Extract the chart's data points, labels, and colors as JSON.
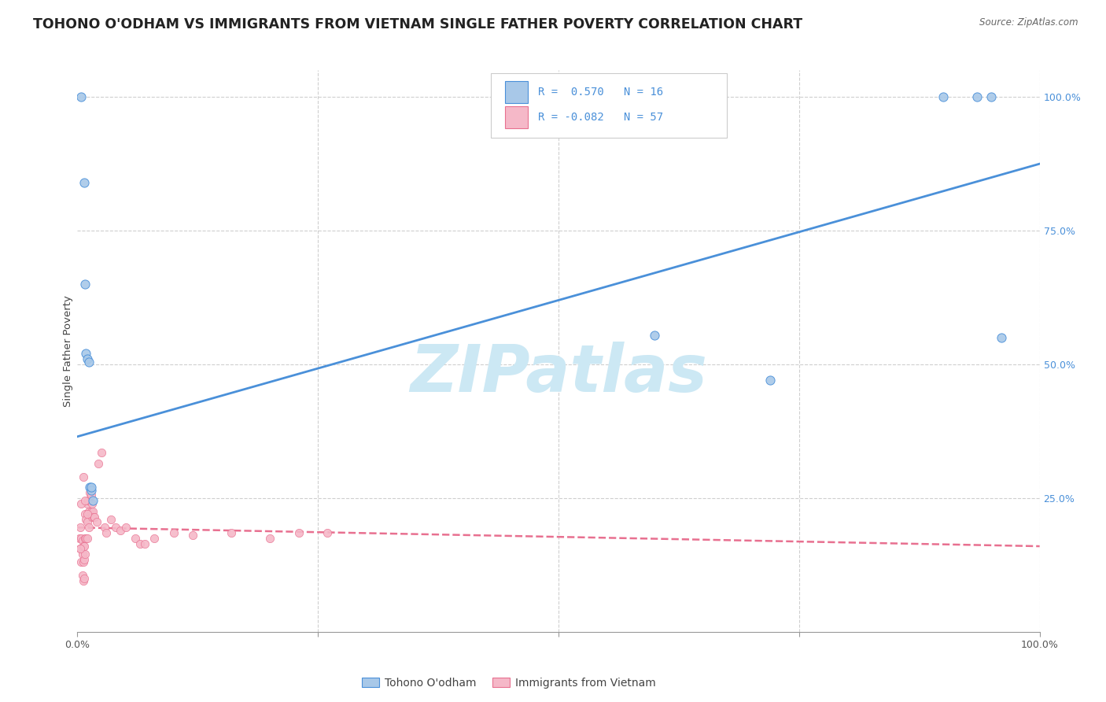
{
  "title": "TOHONO O'ODHAM VS IMMIGRANTS FROM VIETNAM SINGLE FATHER POVERTY CORRELATION CHART",
  "source": "Source: ZipAtlas.com",
  "ylabel": "Single Father Poverty",
  "right_yticks": [
    "100.0%",
    "75.0%",
    "50.0%",
    "25.0%"
  ],
  "right_ytick_vals": [
    1.0,
    0.75,
    0.5,
    0.25
  ],
  "legend_label1": "Tohono O'odham",
  "legend_label2": "Immigrants from Vietnam",
  "R1": 0.57,
  "N1": 16,
  "R2": -0.082,
  "N2": 57,
  "color_blue": "#a8c8e8",
  "color_pink": "#f5b8c8",
  "line_blue": "#4a90d9",
  "line_pink": "#e87090",
  "watermark": "ZIPatlas",
  "blue_points_x": [
    0.004,
    0.007,
    0.008,
    0.009,
    0.01,
    0.012,
    0.013,
    0.014,
    0.014,
    0.016,
    0.6,
    0.72,
    0.9,
    0.935,
    0.95,
    0.96
  ],
  "blue_points_y": [
    1.0,
    0.84,
    0.65,
    0.52,
    0.51,
    0.505,
    0.27,
    0.265,
    0.27,
    0.245,
    0.555,
    0.47,
    1.0,
    1.0,
    1.0,
    0.55
  ],
  "pink_points_x": [
    0.002,
    0.003,
    0.003,
    0.004,
    0.004,
    0.005,
    0.005,
    0.005,
    0.006,
    0.006,
    0.006,
    0.007,
    0.007,
    0.007,
    0.008,
    0.008,
    0.008,
    0.009,
    0.009,
    0.01,
    0.01,
    0.01,
    0.011,
    0.012,
    0.012,
    0.013,
    0.014,
    0.014,
    0.015,
    0.015,
    0.016,
    0.017,
    0.018,
    0.02,
    0.022,
    0.025,
    0.028,
    0.03,
    0.035,
    0.04,
    0.045,
    0.05,
    0.06,
    0.065,
    0.07,
    0.08,
    0.1,
    0.12,
    0.16,
    0.2,
    0.23,
    0.26,
    0.003,
    0.004,
    0.006,
    0.008,
    0.01
  ],
  "pink_points_y": [
    0.175,
    0.195,
    0.155,
    0.175,
    0.13,
    0.17,
    0.145,
    0.105,
    0.16,
    0.13,
    0.095,
    0.16,
    0.135,
    0.1,
    0.22,
    0.175,
    0.145,
    0.21,
    0.175,
    0.24,
    0.205,
    0.175,
    0.245,
    0.225,
    0.195,
    0.26,
    0.255,
    0.225,
    0.24,
    0.215,
    0.225,
    0.215,
    0.215,
    0.205,
    0.315,
    0.335,
    0.195,
    0.185,
    0.21,
    0.195,
    0.19,
    0.195,
    0.175,
    0.165,
    0.165,
    0.175,
    0.185,
    0.18,
    0.185,
    0.175,
    0.185,
    0.185,
    0.155,
    0.24,
    0.29,
    0.245,
    0.22
  ],
  "blue_line_x": [
    0.0,
    1.0
  ],
  "blue_line_y_start": 0.365,
  "blue_line_y_end": 0.875,
  "pink_line_x": [
    0.0,
    1.0
  ],
  "pink_line_y_start": 0.195,
  "pink_line_y_end": 0.16,
  "xlim": [
    0,
    1
  ],
  "ylim": [
    0,
    1.05
  ],
  "background_color": "#ffffff",
  "grid_color": "#bbbbbb",
  "watermark_color": "#cce8f4",
  "title_fontsize": 12.5,
  "axis_fontsize": 9.5,
  "tick_fontsize": 9,
  "source_fontsize": 8.5
}
